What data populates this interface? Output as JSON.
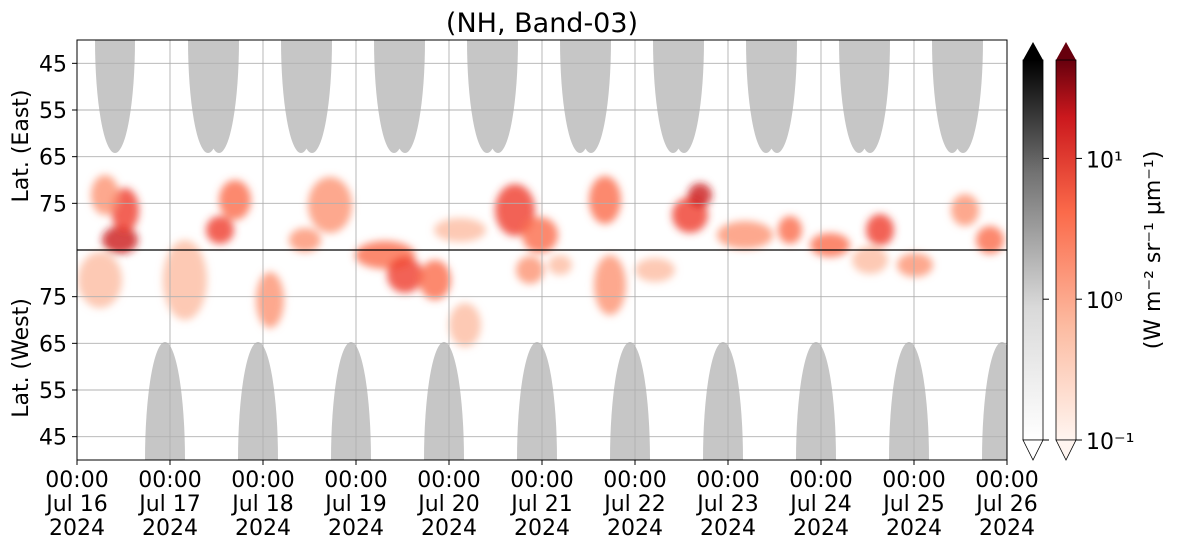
{
  "chart_data": {
    "type": "heatmap",
    "title": "(NH, Band-03)",
    "ylabel_upper": "Lat. (East)",
    "ylabel_lower": "Lat. (West)",
    "x_ticks": [
      {
        "time": "00:00",
        "date": "Jul 16",
        "year": "2024"
      },
      {
        "time": "00:00",
        "date": "Jul 17",
        "year": "2024"
      },
      {
        "time": "00:00",
        "date": "Jul 18",
        "year": "2024"
      },
      {
        "time": "00:00",
        "date": "Jul 19",
        "year": "2024"
      },
      {
        "time": "00:00",
        "date": "Jul 20",
        "year": "2024"
      },
      {
        "time": "00:00",
        "date": "Jul 21",
        "year": "2024"
      },
      {
        "time": "00:00",
        "date": "Jul 22",
        "year": "2024"
      },
      {
        "time": "00:00",
        "date": "Jul 23",
        "year": "2024"
      },
      {
        "time": "00:00",
        "date": "Jul 24",
        "year": "2024"
      },
      {
        "time": "00:00",
        "date": "Jul 25",
        "year": "2024"
      },
      {
        "time": "00:00",
        "date": "Jul 26",
        "year": "2024"
      }
    ],
    "x_range": [
      "2024-07-16 00:00",
      "2024-07-26 00:00"
    ],
    "y_upper_ticks": [
      "45",
      "55",
      "65",
      "75"
    ],
    "y_lower_ticks": [
      "75",
      "65",
      "55",
      "45"
    ],
    "y_upper_range": [
      40,
      85
    ],
    "y_lower_range": [
      85,
      40
    ],
    "grid": true,
    "colorbar": {
      "label": "(W m⁻² sr⁻¹ μm⁻¹)",
      "scale": "log",
      "range": [
        0.1,
        50
      ],
      "tick_labels": [
        "10⁻¹",
        "10⁰",
        "10¹"
      ],
      "tick_values": [
        0.1,
        1,
        10
      ],
      "gray_bar": "Greys",
      "red_bar": "Reds",
      "extend": "both"
    },
    "gray_regions_note": "daylight / no-data masks",
    "gray_color": "#c6c6c6",
    "red_color_min": "#fff0e8",
    "red_color_max": "#a50f15"
  }
}
